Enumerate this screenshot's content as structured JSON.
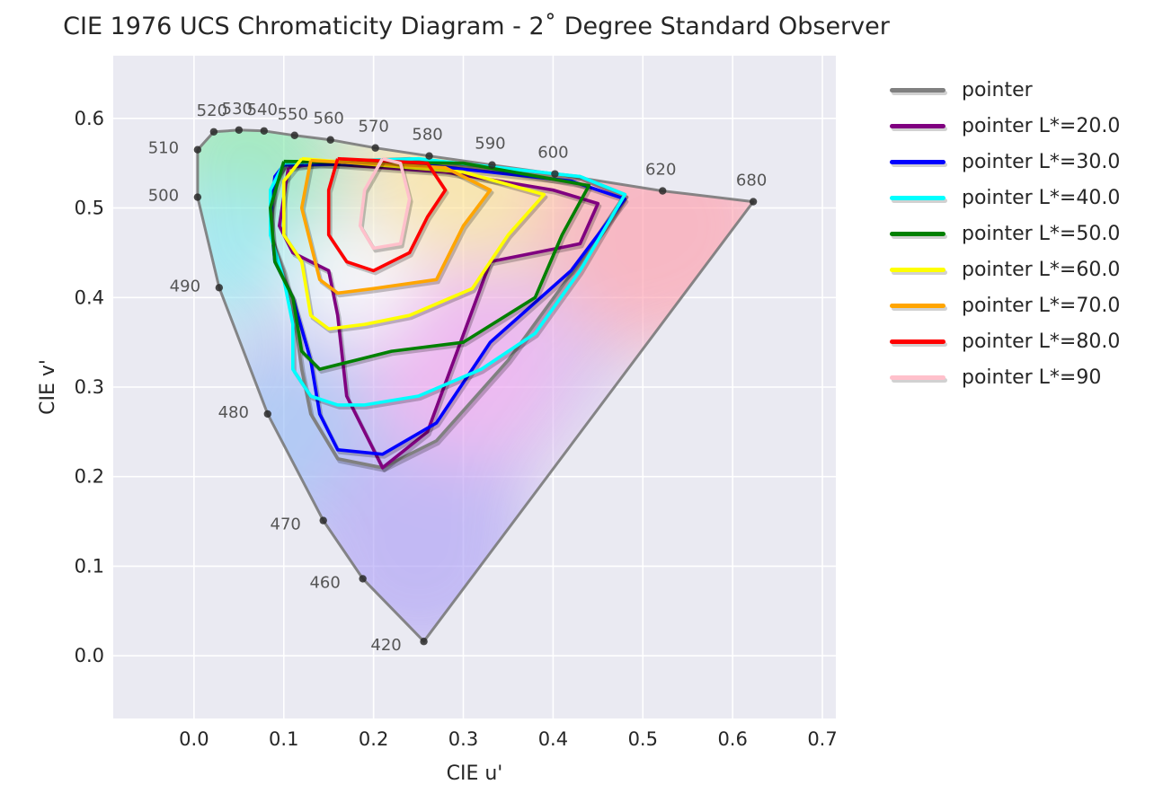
{
  "chart_data": {
    "type": "line",
    "title": "CIE 1976 UCS Chromaticity Diagram - 2˚ Degree Standard Observer",
    "xlabel": "CIE u'",
    "ylabel": "CIE v'",
    "xlim": [
      -0.09,
      0.715
    ],
    "ylim": [
      -0.07,
      0.67
    ],
    "xticks": [
      "0.0",
      "0.1",
      "0.2",
      "0.3",
      "0.4",
      "0.5",
      "0.6",
      "0.7"
    ],
    "yticks": [
      "0.0",
      "0.1",
      "0.2",
      "0.3",
      "0.4",
      "0.5",
      "0.6"
    ],
    "grid": true,
    "legend_position": "outside-right",
    "spectral_locus": [
      [
        0.256,
        0.016
      ],
      [
        0.188,
        0.086
      ],
      [
        0.144,
        0.151
      ],
      [
        0.082,
        0.27
      ],
      [
        0.028,
        0.411
      ],
      [
        0.004,
        0.512
      ],
      [
        0.004,
        0.565
      ],
      [
        0.022,
        0.585
      ],
      [
        0.05,
        0.587
      ],
      [
        0.078,
        0.586
      ],
      [
        0.112,
        0.581
      ],
      [
        0.152,
        0.576
      ],
      [
        0.202,
        0.567
      ],
      [
        0.262,
        0.558
      ],
      [
        0.332,
        0.548
      ],
      [
        0.402,
        0.538
      ],
      [
        0.522,
        0.519
      ],
      [
        0.623,
        0.507
      ]
    ],
    "wavelength_labels": [
      {
        "label": "420",
        "u": 0.256,
        "v": 0.016
      },
      {
        "label": "460",
        "u": 0.188,
        "v": 0.086
      },
      {
        "label": "470",
        "u": 0.144,
        "v": 0.151
      },
      {
        "label": "480",
        "u": 0.082,
        "v": 0.27
      },
      {
        "label": "490",
        "u": 0.028,
        "v": 0.411
      },
      {
        "label": "500",
        "u": 0.004,
        "v": 0.512
      },
      {
        "label": "510",
        "u": 0.004,
        "v": 0.565
      },
      {
        "label": "520",
        "u": 0.022,
        "v": 0.585
      },
      {
        "label": "530",
        "u": 0.05,
        "v": 0.587
      },
      {
        "label": "540",
        "u": 0.078,
        "v": 0.586
      },
      {
        "label": "550",
        "u": 0.112,
        "v": 0.581
      },
      {
        "label": "560",
        "u": 0.152,
        "v": 0.576
      },
      {
        "label": "570",
        "u": 0.202,
        "v": 0.567
      },
      {
        "label": "580",
        "u": 0.262,
        "v": 0.558
      },
      {
        "label": "590",
        "u": 0.332,
        "v": 0.548
      },
      {
        "label": "600",
        "u": 0.402,
        "v": 0.538
      },
      {
        "label": "620",
        "u": 0.522,
        "v": 0.519
      },
      {
        "label": "680",
        "u": 0.623,
        "v": 0.507
      }
    ],
    "series": [
      {
        "name": "pointer",
        "color": "#808080",
        "points": [
          [
            0.1,
            0.55
          ],
          [
            0.24,
            0.555
          ],
          [
            0.43,
            0.535
          ],
          [
            0.48,
            0.515
          ],
          [
            0.43,
            0.44
          ],
          [
            0.35,
            0.33
          ],
          [
            0.27,
            0.24
          ],
          [
            0.21,
            0.21
          ],
          [
            0.16,
            0.22
          ],
          [
            0.13,
            0.27
          ],
          [
            0.12,
            0.32
          ],
          [
            0.11,
            0.39
          ],
          [
            0.1,
            0.43
          ],
          [
            0.085,
            0.47
          ],
          [
            0.09,
            0.53
          ],
          [
            0.1,
            0.55
          ]
        ]
      },
      {
        "name": "pointer L*=20.0",
        "color": "#800080",
        "points": [
          [
            0.105,
            0.545
          ],
          [
            0.14,
            0.55
          ],
          [
            0.28,
            0.54
          ],
          [
            0.4,
            0.52
          ],
          [
            0.45,
            0.505
          ],
          [
            0.43,
            0.46
          ],
          [
            0.33,
            0.44
          ],
          [
            0.26,
            0.25
          ],
          [
            0.21,
            0.21
          ],
          [
            0.17,
            0.29
          ],
          [
            0.16,
            0.38
          ],
          [
            0.15,
            0.43
          ],
          [
            0.13,
            0.44
          ],
          [
            0.11,
            0.45
          ],
          [
            0.095,
            0.48
          ],
          [
            0.105,
            0.545
          ]
        ]
      },
      {
        "name": "pointer L*=30.0",
        "color": "#0000ff",
        "points": [
          [
            0.1,
            0.548
          ],
          [
            0.24,
            0.55
          ],
          [
            0.42,
            0.53
          ],
          [
            0.48,
            0.51
          ],
          [
            0.42,
            0.43
          ],
          [
            0.33,
            0.35
          ],
          [
            0.27,
            0.26
          ],
          [
            0.21,
            0.225
          ],
          [
            0.16,
            0.23
          ],
          [
            0.14,
            0.27
          ],
          [
            0.13,
            0.33
          ],
          [
            0.11,
            0.4
          ],
          [
            0.09,
            0.44
          ],
          [
            0.085,
            0.49
          ],
          [
            0.09,
            0.535
          ],
          [
            0.1,
            0.548
          ]
        ]
      },
      {
        "name": "pointer L*=40.0",
        "color": "#00ffff",
        "points": [
          [
            0.1,
            0.55
          ],
          [
            0.25,
            0.555
          ],
          [
            0.43,
            0.535
          ],
          [
            0.48,
            0.515
          ],
          [
            0.43,
            0.43
          ],
          [
            0.38,
            0.36
          ],
          [
            0.32,
            0.32
          ],
          [
            0.25,
            0.29
          ],
          [
            0.19,
            0.28
          ],
          [
            0.16,
            0.28
          ],
          [
            0.13,
            0.29
          ],
          [
            0.11,
            0.32
          ],
          [
            0.11,
            0.37
          ],
          [
            0.1,
            0.42
          ],
          [
            0.085,
            0.47
          ],
          [
            0.085,
            0.52
          ],
          [
            0.1,
            0.55
          ]
        ]
      },
      {
        "name": "pointer L*=50.0",
        "color": "#008000",
        "points": [
          [
            0.1,
            0.552
          ],
          [
            0.3,
            0.55
          ],
          [
            0.44,
            0.525
          ],
          [
            0.41,
            0.47
          ],
          [
            0.38,
            0.4
          ],
          [
            0.3,
            0.35
          ],
          [
            0.22,
            0.34
          ],
          [
            0.18,
            0.33
          ],
          [
            0.14,
            0.32
          ],
          [
            0.12,
            0.34
          ],
          [
            0.11,
            0.4
          ],
          [
            0.09,
            0.44
          ],
          [
            0.085,
            0.5
          ],
          [
            0.1,
            0.552
          ]
        ]
      },
      {
        "name": "pointer L*=60.0",
        "color": "#ffff00",
        "points": [
          [
            0.12,
            0.555
          ],
          [
            0.3,
            0.54
          ],
          [
            0.39,
            0.515
          ],
          [
            0.35,
            0.47
          ],
          [
            0.31,
            0.41
          ],
          [
            0.24,
            0.38
          ],
          [
            0.19,
            0.37
          ],
          [
            0.15,
            0.365
          ],
          [
            0.13,
            0.38
          ],
          [
            0.12,
            0.44
          ],
          [
            0.1,
            0.47
          ],
          [
            0.1,
            0.53
          ],
          [
            0.12,
            0.555
          ]
        ]
      },
      {
        "name": "pointer L*=70.0",
        "color": "#ffa500",
        "points": [
          [
            0.13,
            0.553
          ],
          [
            0.28,
            0.545
          ],
          [
            0.33,
            0.52
          ],
          [
            0.3,
            0.48
          ],
          [
            0.27,
            0.42
          ],
          [
            0.2,
            0.41
          ],
          [
            0.16,
            0.405
          ],
          [
            0.14,
            0.42
          ],
          [
            0.13,
            0.46
          ],
          [
            0.12,
            0.5
          ],
          [
            0.13,
            0.553
          ]
        ]
      },
      {
        "name": "pointer L*=80.0",
        "color": "#ff0000",
        "points": [
          [
            0.16,
            0.555
          ],
          [
            0.26,
            0.55
          ],
          [
            0.28,
            0.52
          ],
          [
            0.26,
            0.49
          ],
          [
            0.24,
            0.45
          ],
          [
            0.2,
            0.43
          ],
          [
            0.17,
            0.44
          ],
          [
            0.15,
            0.47
          ],
          [
            0.15,
            0.52
          ],
          [
            0.16,
            0.555
          ]
        ]
      },
      {
        "name": "pointer L*=90",
        "color": "#ffc0cb",
        "points": [
          [
            0.21,
            0.555
          ],
          [
            0.23,
            0.55
          ],
          [
            0.24,
            0.51
          ],
          [
            0.23,
            0.46
          ],
          [
            0.2,
            0.455
          ],
          [
            0.185,
            0.48
          ],
          [
            0.19,
            0.52
          ],
          [
            0.21,
            0.555
          ]
        ]
      }
    ]
  }
}
